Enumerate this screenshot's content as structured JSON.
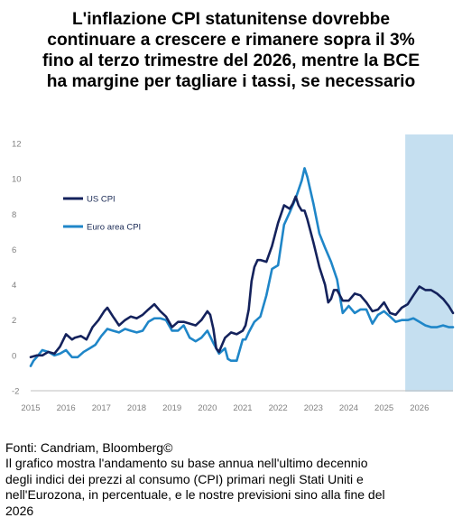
{
  "title_lines": [
    "L'inflazione CPI statunitense dovrebbe",
    "continuare a crescere e rimanere sopra il 3%",
    "fino al terzo trimestre del 2026, mentre la BCE",
    "ha margine per tagliare i tassi, se necessario"
  ],
  "footer": {
    "source": "Fonti: Candriam, Bloomberg©",
    "caption_lines": [
      "Il grafico mostra l'andamento su base annua nell'ultimo decennio",
      "degli indici dei prezzi al consumo (CPI) primari negli Stati Uniti e",
      "nell'Eurozona, in percentuale, e le nostre previsioni sino alla fine del",
      "2026"
    ]
  },
  "colors": {
    "us_cpi": "#14225c",
    "euro_cpi": "#1f86c8",
    "forecast_band": "#c5dff0",
    "axis_text": "#808080",
    "axis_line": "#bfbfbf"
  },
  "chart_data": {
    "type": "line",
    "title": "",
    "xlabel": "",
    "ylabel": "",
    "ylim": [
      -2,
      12
    ],
    "xlim": [
      2015.0,
      2026.95
    ],
    "yticks": [
      "-2",
      "0",
      "2",
      "4",
      "6",
      "8",
      "10",
      "12"
    ],
    "xticks": [
      "2015",
      "2016",
      "2017",
      "2018",
      "2019",
      "2020",
      "2021",
      "2022",
      "2023",
      "2024",
      "2025",
      "2026"
    ],
    "legend": {
      "placement": "top-left",
      "entries": [
        "US CPI",
        "Euro area CPI"
      ]
    },
    "forecast_region": {
      "from": 2025.6,
      "to": 2026.95
    },
    "series": [
      {
        "name": "US CPI",
        "x": [
          2015.0,
          2015.17,
          2015.33,
          2015.5,
          2015.67,
          2015.83,
          2016.0,
          2016.17,
          2016.25,
          2016.42,
          2016.58,
          2016.75,
          2016.92,
          2017.08,
          2017.17,
          2017.33,
          2017.5,
          2017.67,
          2017.83,
          2018.0,
          2018.17,
          2018.33,
          2018.5,
          2018.67,
          2018.83,
          2019.0,
          2019.17,
          2019.33,
          2019.5,
          2019.67,
          2019.83,
          2020.0,
          2020.08,
          2020.17,
          2020.25,
          2020.33,
          2020.5,
          2020.67,
          2020.83,
          2021.0,
          2021.08,
          2021.17,
          2021.25,
          2021.33,
          2021.42,
          2021.5,
          2021.67,
          2021.83,
          2022.0,
          2022.17,
          2022.33,
          2022.42,
          2022.5,
          2022.58,
          2022.67,
          2022.75,
          2022.83,
          2023.0,
          2023.17,
          2023.33,
          2023.42,
          2023.5,
          2023.58,
          2023.67,
          2023.83,
          2024.0,
          2024.17,
          2024.33,
          2024.5,
          2024.67,
          2024.83,
          2025.0,
          2025.17,
          2025.33,
          2025.5,
          2025.67,
          2025.83,
          2026.0,
          2026.17,
          2026.33,
          2026.5,
          2026.67,
          2026.83,
          2026.95
        ],
        "values": [
          -0.1,
          0.0,
          0.0,
          0.2,
          0.1,
          0.5,
          1.2,
          0.9,
          1.0,
          1.1,
          0.9,
          1.6,
          2.0,
          2.5,
          2.7,
          2.2,
          1.7,
          2.0,
          2.2,
          2.1,
          2.3,
          2.6,
          2.9,
          2.5,
          2.2,
          1.6,
          1.9,
          1.9,
          1.8,
          1.7,
          2.0,
          2.5,
          2.3,
          1.5,
          0.4,
          0.2,
          1.0,
          1.3,
          1.2,
          1.4,
          1.7,
          2.6,
          4.2,
          5.0,
          5.4,
          5.4,
          5.3,
          6.2,
          7.5,
          8.5,
          8.3,
          8.6,
          9.0,
          8.5,
          8.2,
          8.2,
          7.7,
          6.4,
          5.0,
          4.0,
          3.0,
          3.2,
          3.7,
          3.7,
          3.1,
          3.1,
          3.5,
          3.4,
          3.0,
          2.5,
          2.6,
          3.0,
          2.4,
          2.3,
          2.7,
          2.9,
          3.4,
          3.9,
          3.7,
          3.7,
          3.5,
          3.2,
          2.8,
          2.4
        ]
      },
      {
        "name": "Euro area CPI",
        "x": [
          2015.0,
          2015.08,
          2015.17,
          2015.33,
          2015.5,
          2015.67,
          2015.83,
          2016.0,
          2016.17,
          2016.33,
          2016.5,
          2016.67,
          2016.83,
          2017.0,
          2017.17,
          2017.33,
          2017.5,
          2017.67,
          2017.83,
          2018.0,
          2018.17,
          2018.33,
          2018.5,
          2018.67,
          2018.83,
          2019.0,
          2019.17,
          2019.33,
          2019.5,
          2019.67,
          2019.83,
          2020.0,
          2020.17,
          2020.33,
          2020.5,
          2020.58,
          2020.67,
          2020.83,
          2021.0,
          2021.08,
          2021.17,
          2021.33,
          2021.5,
          2021.67,
          2021.83,
          2022.0,
          2022.17,
          2022.33,
          2022.5,
          2022.67,
          2022.75,
          2022.83,
          2023.0,
          2023.17,
          2023.33,
          2023.5,
          2023.67,
          2023.83,
          2024.0,
          2024.17,
          2024.33,
          2024.5,
          2024.67,
          2024.83,
          2025.0,
          2025.17,
          2025.33,
          2025.5,
          2025.67,
          2025.83,
          2026.0,
          2026.17,
          2026.33,
          2026.5,
          2026.67,
          2026.83,
          2026.95
        ],
        "values": [
          -0.6,
          -0.3,
          -0.1,
          0.3,
          0.2,
          0.0,
          0.1,
          0.3,
          -0.1,
          -0.1,
          0.2,
          0.4,
          0.6,
          1.1,
          1.5,
          1.4,
          1.3,
          1.5,
          1.4,
          1.3,
          1.4,
          1.9,
          2.1,
          2.1,
          2.0,
          1.4,
          1.4,
          1.7,
          1.0,
          0.8,
          1.0,
          1.4,
          0.7,
          0.1,
          0.4,
          -0.2,
          -0.3,
          -0.3,
          0.9,
          0.9,
          1.3,
          1.9,
          2.2,
          3.4,
          4.9,
          5.1,
          7.4,
          8.1,
          8.9,
          9.9,
          10.6,
          10.1,
          8.6,
          6.9,
          6.1,
          5.3,
          4.3,
          2.4,
          2.8,
          2.4,
          2.6,
          2.6,
          1.8,
          2.3,
          2.5,
          2.2,
          1.9,
          2.0,
          2.0,
          2.1,
          1.9,
          1.7,
          1.6,
          1.6,
          1.7,
          1.6,
          1.6
        ]
      }
    ]
  }
}
